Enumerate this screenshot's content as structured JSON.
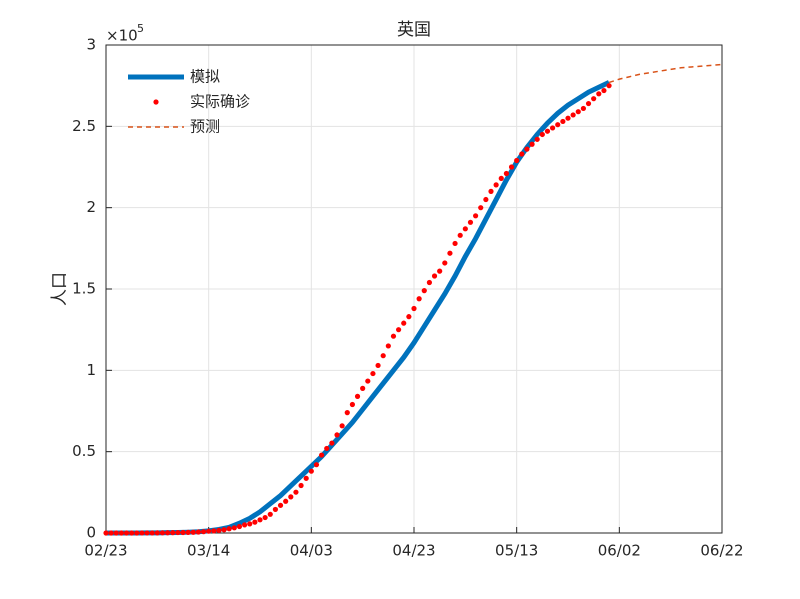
{
  "chart_data": {
    "type": "line",
    "title": "英国",
    "y_label": "人口",
    "y_multiplier": {
      "base": "×10",
      "exponent": "5"
    },
    "xlim": [
      "02/23",
      "06/22"
    ],
    "xticks": [
      "02/23",
      "03/14",
      "04/03",
      "04/23",
      "05/13",
      "06/02",
      "06/22"
    ],
    "ylim": [
      0,
      3
    ],
    "yticks": [
      0,
      0.5,
      1,
      1.5,
      2,
      2.5,
      3
    ],
    "grid": true,
    "legend": "upper-left",
    "series": [
      {
        "name": "模拟",
        "color": "#0072BD",
        "style": "solid",
        "x": [
          "02/23",
          "02/25",
          "02/27",
          "02/29",
          "03/02",
          "03/04",
          "03/06",
          "03/08",
          "03/10",
          "03/12",
          "03/14",
          "03/16",
          "03/18",
          "03/20",
          "03/22",
          "03/24",
          "03/26",
          "03/28",
          "03/30",
          "04/01",
          "04/03",
          "04/05",
          "04/07",
          "04/09",
          "04/11",
          "04/13",
          "04/15",
          "04/17",
          "04/19",
          "04/21",
          "04/23",
          "04/25",
          "04/27",
          "04/29",
          "05/01",
          "05/03",
          "05/05",
          "05/07",
          "05/09",
          "05/11",
          "05/13",
          "05/15",
          "05/17",
          "05/19",
          "05/21",
          "05/23",
          "05/25",
          "05/27",
          "05/29",
          "05/31"
        ],
        "values": [
          0,
          0,
          0,
          0,
          0.001,
          0.001,
          0.002,
          0.003,
          0.005,
          0.008,
          0.013,
          0.022,
          0.035,
          0.06,
          0.09,
          0.13,
          0.18,
          0.23,
          0.29,
          0.35,
          0.41,
          0.47,
          0.54,
          0.61,
          0.68,
          0.76,
          0.84,
          0.92,
          1.0,
          1.08,
          1.17,
          1.27,
          1.37,
          1.47,
          1.58,
          1.7,
          1.81,
          1.93,
          2.05,
          2.17,
          2.28,
          2.37,
          2.45,
          2.52,
          2.58,
          2.63,
          2.67,
          2.71,
          2.74,
          2.77
        ]
      },
      {
        "name": "实际确诊",
        "color": "#ff0000",
        "style": "dots",
        "x": [
          "02/23",
          "02/24",
          "02/25",
          "02/26",
          "02/27",
          "02/28",
          "02/29",
          "03/01",
          "03/02",
          "03/03",
          "03/04",
          "03/05",
          "03/06",
          "03/07",
          "03/08",
          "03/09",
          "03/10",
          "03/11",
          "03/12",
          "03/13",
          "03/14",
          "03/15",
          "03/16",
          "03/17",
          "03/18",
          "03/19",
          "03/20",
          "03/21",
          "03/22",
          "03/23",
          "03/24",
          "03/25",
          "03/26",
          "03/27",
          "03/28",
          "03/29",
          "03/30",
          "03/31",
          "04/01",
          "04/02",
          "04/03",
          "04/04",
          "04/05",
          "04/06",
          "04/07",
          "04/08",
          "04/09",
          "04/10",
          "04/11",
          "04/12",
          "04/13",
          "04/14",
          "04/15",
          "04/16",
          "04/17",
          "04/18",
          "04/19",
          "04/20",
          "04/21",
          "04/22",
          "04/23",
          "04/24",
          "04/25",
          "04/26",
          "04/27",
          "04/28",
          "04/29",
          "04/30",
          "05/01",
          "05/02",
          "05/03",
          "05/04",
          "05/05",
          "05/06",
          "05/07",
          "05/08",
          "05/09",
          "05/10",
          "05/11",
          "05/12",
          "05/13",
          "05/14",
          "05/15",
          "05/16",
          "05/17",
          "05/18",
          "05/19",
          "05/20",
          "05/21",
          "05/22",
          "05/23",
          "05/24",
          "05/25",
          "05/26",
          "05/27",
          "05/28",
          "05/29",
          "05/30",
          "05/31"
        ],
        "values": [
          0,
          0,
          0,
          0,
          0,
          0,
          0,
          0.0004,
          0.0004,
          0.0005,
          0.0009,
          0.0012,
          0.0016,
          0.0021,
          0.0027,
          0.0032,
          0.0037,
          0.0046,
          0.006,
          0.008,
          0.011,
          0.013,
          0.016,
          0.02,
          0.026,
          0.032,
          0.04,
          0.05,
          0.056,
          0.067,
          0.081,
          0.095,
          0.115,
          0.145,
          0.17,
          0.195,
          0.222,
          0.251,
          0.292,
          0.336,
          0.38,
          0.42,
          0.479,
          0.52,
          0.553,
          0.603,
          0.659,
          0.74,
          0.79,
          0.84,
          0.889,
          0.934,
          0.98,
          1.03,
          1.09,
          1.15,
          1.21,
          1.25,
          1.29,
          1.33,
          1.38,
          1.44,
          1.49,
          1.54,
          1.58,
          1.61,
          1.66,
          1.72,
          1.78,
          1.83,
          1.87,
          1.91,
          1.95,
          2.0,
          2.05,
          2.1,
          2.14,
          2.18,
          2.21,
          2.25,
          2.29,
          2.33,
          2.36,
          2.39,
          2.42,
          2.45,
          2.47,
          2.49,
          2.51,
          2.53,
          2.55,
          2.57,
          2.59,
          2.61,
          2.64,
          2.67,
          2.7,
          2.72,
          2.75
        ]
      },
      {
        "name": "预测",
        "color": "#D95319",
        "style": "dashed",
        "x": [
          "05/31",
          "06/02",
          "06/04",
          "06/06",
          "06/08",
          "06/10",
          "06/12",
          "06/14",
          "06/16",
          "06/18",
          "06/20",
          "06/22"
        ],
        "values": [
          2.77,
          2.79,
          2.805,
          2.82,
          2.83,
          2.84,
          2.85,
          2.86,
          2.865,
          2.87,
          2.875,
          2.88
        ]
      }
    ]
  }
}
